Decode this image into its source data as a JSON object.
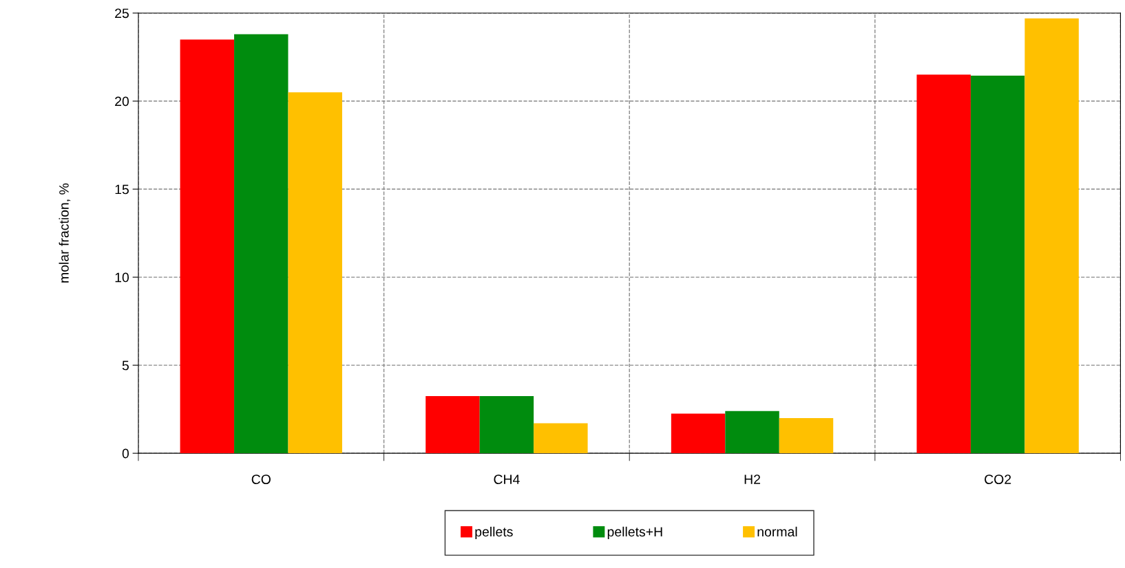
{
  "chart_data": {
    "type": "bar",
    "ylabel": "molar fraction, %",
    "categories": [
      "CO",
      "CH4",
      "H2",
      "CO2"
    ],
    "series": [
      {
        "name": "pellets",
        "color": "#ff0000",
        "values": [
          23.5,
          3.25,
          2.25,
          21.5
        ]
      },
      {
        "name": "pellets+H",
        "color": "#008c0e",
        "values": [
          23.8,
          3.25,
          2.4,
          21.45
        ]
      },
      {
        "name": "normal",
        "color": "#ffc000",
        "values": [
          20.5,
          1.7,
          2.0,
          24.7
        ]
      }
    ],
    "ylim": [
      0,
      25
    ],
    "yticks": [
      0,
      5,
      10,
      15,
      20,
      25
    ],
    "grid": true,
    "legend": "bottom"
  }
}
